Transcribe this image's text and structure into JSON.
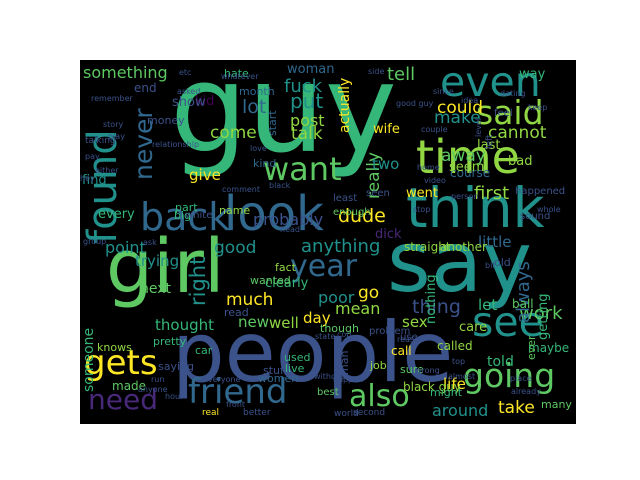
{
  "palette": {
    "background": "#000000",
    "colors": [
      "#440154",
      "#3b528b",
      "#21918c",
      "#5ec962",
      "#fde725",
      "#31688e",
      "#35b779",
      "#90d743",
      "#482878"
    ]
  },
  "words": [
    {
      "text": "guy",
      "color": "#35b779"
    },
    {
      "text": "people",
      "color": "#3b528b"
    },
    {
      "text": "say",
      "color": "#21918c"
    },
    {
      "text": "girl",
      "color": "#5ec962"
    },
    {
      "text": "think",
      "color": "#21918c"
    },
    {
      "text": "look",
      "color": "#31688e"
    },
    {
      "text": "time",
      "color": "#90d743"
    },
    {
      "text": "found",
      "color": "#21918c"
    },
    {
      "text": "even",
      "color": "#21918c"
    },
    {
      "text": "back",
      "color": "#31688e"
    },
    {
      "text": "going",
      "color": "#5ec962"
    },
    {
      "text": "see",
      "color": "#21918c"
    },
    {
      "text": "said",
      "color": "#90d743"
    },
    {
      "text": "friend",
      "color": "#31688e"
    },
    {
      "text": "want",
      "color": "#5ec962"
    },
    {
      "text": "gets",
      "color": "#fde725"
    },
    {
      "text": "year",
      "color": "#31688e"
    },
    {
      "text": "also",
      "color": "#5ec962"
    },
    {
      "text": "need",
      "color": "#482878"
    },
    {
      "text": "never",
      "color": "#31688e"
    },
    {
      "text": "right",
      "color": "#21918c"
    },
    {
      "text": "come",
      "color": "#90d743"
    },
    {
      "text": "lot",
      "color": "#31688e"
    },
    {
      "text": "put",
      "color": "#21918c"
    },
    {
      "text": "fuck",
      "color": "#21918c"
    },
    {
      "text": "talk",
      "color": "#90d743"
    },
    {
      "text": "probably",
      "color": "#3b528b"
    },
    {
      "text": "dude",
      "color": "#fde725"
    },
    {
      "text": "much",
      "color": "#fde725"
    },
    {
      "text": "thing",
      "color": "#3b528b"
    },
    {
      "text": "work",
      "color": "#5ec962"
    },
    {
      "text": "good",
      "color": "#21918c"
    },
    {
      "text": "anything",
      "color": "#21918c"
    },
    {
      "text": "always",
      "color": "#31688e"
    },
    {
      "text": "first",
      "color": "#90d743"
    },
    {
      "text": "make",
      "color": "#21918c"
    },
    {
      "text": "could",
      "color": "#fde725"
    },
    {
      "text": "really",
      "color": "#5ec962"
    },
    {
      "text": "two",
      "color": "#21918c"
    },
    {
      "text": "away",
      "color": "#5ec962"
    },
    {
      "text": "cannot",
      "color": "#90d743"
    },
    {
      "text": "something",
      "color": "#5ec962"
    },
    {
      "text": "woman",
      "color": "#31688e"
    },
    {
      "text": "tell",
      "color": "#5ec962"
    },
    {
      "text": "post",
      "color": "#90d743"
    },
    {
      "text": "actually",
      "color": "#fde725"
    },
    {
      "text": "trying",
      "color": "#21918c"
    },
    {
      "text": "point",
      "color": "#21918c"
    },
    {
      "text": "poor",
      "color": "#21918c"
    },
    {
      "text": "go",
      "color": "#fde725"
    },
    {
      "text": "mean",
      "color": "#90d743"
    },
    {
      "text": "new",
      "color": "#5ec962"
    },
    {
      "text": "well",
      "color": "#90d743"
    },
    {
      "text": "day",
      "color": "#fde725"
    },
    {
      "text": "thought",
      "color": "#35b779"
    },
    {
      "text": "next",
      "color": "#5ec962"
    },
    {
      "text": "someone",
      "color": "#35b779"
    },
    {
      "text": "around",
      "color": "#21918c"
    },
    {
      "text": "take",
      "color": "#fde725"
    },
    {
      "text": "little",
      "color": "#31688e"
    },
    {
      "text": "let",
      "color": "#35b779"
    },
    {
      "text": "sex",
      "color": "#90d743"
    },
    {
      "text": "told",
      "color": "#35b779"
    },
    {
      "text": "life",
      "color": "#fde725"
    },
    {
      "text": "made",
      "color": "#5ec962"
    },
    {
      "text": "give",
      "color": "#fde725"
    },
    {
      "text": "kid",
      "color": "#440154"
    },
    {
      "text": "show",
      "color": "#3b528b"
    },
    {
      "text": "every",
      "color": "#35b779"
    },
    {
      "text": "part",
      "color": "#35b779"
    },
    {
      "text": "find",
      "color": "#21918c"
    },
    {
      "text": "knows",
      "color": "#90d743"
    },
    {
      "text": "pretty",
      "color": "#35b779"
    },
    {
      "text": "black guy",
      "color": "#90d743"
    },
    {
      "text": "dick",
      "color": "#482878"
    },
    {
      "text": "clearly",
      "color": "#35b779"
    },
    {
      "text": "fact",
      "color": "#90d743"
    },
    {
      "text": "call",
      "color": "#fde725"
    },
    {
      "text": "job",
      "color": "#90d743"
    },
    {
      "text": "sure",
      "color": "#5ec962"
    },
    {
      "text": "went",
      "color": "#fde725"
    },
    {
      "text": "course",
      "color": "#31688e"
    },
    {
      "text": "seem",
      "color": "#90d743"
    },
    {
      "text": "nothing",
      "color": "#35b779"
    },
    {
      "text": "straight",
      "color": "#90d743"
    },
    {
      "text": "another",
      "color": "#90d743"
    },
    {
      "text": "getting",
      "color": "#35b779"
    },
    {
      "text": "ball",
      "color": "#5ec962"
    },
    {
      "text": "maybe",
      "color": "#35b779"
    },
    {
      "text": "many",
      "color": "#5ec962"
    },
    {
      "text": "care",
      "color": "#90d743"
    },
    {
      "text": "called",
      "color": "#90d743"
    },
    {
      "text": "wife",
      "color": "#fde725"
    },
    {
      "text": "bad",
      "color": "#90d743"
    },
    {
      "text": "month",
      "color": "#31688e"
    },
    {
      "text": "end",
      "color": "#3b528b"
    },
    {
      "text": "money",
      "color": "#3b528b"
    },
    {
      "text": "last",
      "color": "#90d743"
    },
    {
      "text": "way",
      "color": "#35b779"
    },
    {
      "text": "hate",
      "color": "#35b779"
    },
    {
      "text": "start",
      "color": "#31688e"
    },
    {
      "text": "kind",
      "color": "#31688e"
    },
    {
      "text": "wanted",
      "color": "#5ec962"
    },
    {
      "text": "name",
      "color": "#90d743"
    },
    {
      "text": "big",
      "color": "#35b779"
    },
    {
      "text": "car",
      "color": "#35b779"
    },
    {
      "text": "read",
      "color": "#3b528b"
    },
    {
      "text": "women",
      "color": "#31688e"
    },
    {
      "text": "saying",
      "color": "#3b528b"
    },
    {
      "text": "stuff",
      "color": "#3b528b"
    },
    {
      "text": "live",
      "color": "#35b779"
    },
    {
      "text": "used",
      "color": "#35b779"
    },
    {
      "text": "man",
      "color": "#3b528b"
    },
    {
      "text": "though",
      "color": "#5ec962"
    },
    {
      "text": "enough",
      "color": "#5ec962"
    },
    {
      "text": "least",
      "color": "#3b528b"
    },
    {
      "text": "seen",
      "color": "#3b528b"
    },
    {
      "text": "ever",
      "color": "#5ec962"
    },
    {
      "text": "best",
      "color": "#5ec962"
    },
    {
      "text": "might",
      "color": "#35b779"
    },
    {
      "text": "use",
      "color": "#3b528b"
    },
    {
      "text": "old",
      "color": "#3b528b"
    },
    {
      "text": "sound",
      "color": "#3b528b"
    },
    {
      "text": "white",
      "color": "#3b528b"
    },
    {
      "text": "happened",
      "color": "#3b528b"
    },
    {
      "text": "feel",
      "color": "#3b528b"
    },
    {
      "text": "problem",
      "color": "#3b528b"
    },
    {
      "text": "real",
      "color": "#fde725"
    },
    {
      "text": "better",
      "color": "#3b528b"
    },
    {
      "text": "world",
      "color": "#3b528b"
    },
    {
      "text": "second",
      "color": "#3b528b"
    },
    {
      "text": "happen",
      "color": "#3b528b"
    },
    {
      "text": "without",
      "color": "#3b528b"
    },
    {
      "text": "bit",
      "color": "#3b528b"
    },
    {
      "text": "left",
      "color": "#3b528b"
    },
    {
      "text": "asked",
      "color": "#3b528b"
    },
    {
      "text": "play",
      "color": "#3b528b"
    },
    {
      "text": "pay",
      "color": "#3b528b"
    },
    {
      "text": "talking",
      "color": "#3b528b"
    },
    {
      "text": "remember",
      "color": "#3b528b"
    },
    {
      "text": "whole",
      "color": "#3b528b"
    },
    {
      "text": "since",
      "color": "#3b528b"
    },
    {
      "text": "side",
      "color": "#3b528b"
    },
    {
      "text": "reason",
      "color": "#3b528b"
    },
    {
      "text": "stop",
      "color": "#3b528b"
    },
    {
      "text": "person",
      "color": "#3b528b"
    },
    {
      "text": "group",
      "color": "#3b528b"
    },
    {
      "text": "etc",
      "color": "#3b528b"
    },
    {
      "text": "idea",
      "color": "#3b528b"
    },
    {
      "text": "dating",
      "color": "#3b528b"
    },
    {
      "text": "couple",
      "color": "#3b528b"
    },
    {
      "text": "video",
      "color": "#3b528b"
    },
    {
      "text": "hour",
      "color": "#3b528b"
    },
    {
      "text": "run",
      "color": "#3b528b"
    },
    {
      "text": "front",
      "color": "#3b528b"
    },
    {
      "text": "wrong",
      "color": "#3b528b"
    },
    {
      "text": "top",
      "color": "#3b528b"
    },
    {
      "text": "almost",
      "color": "#3b528b"
    },
    {
      "text": "already",
      "color": "#3b528b"
    },
    {
      "text": "place",
      "color": "#3b528b"
    },
    {
      "text": "cop",
      "color": "#3b528b"
    },
    {
      "text": "state",
      "color": "#3b528b"
    },
    {
      "text": "home",
      "color": "#3b528b"
    },
    {
      "text": "black",
      "color": "#3b528b"
    },
    {
      "text": "ask",
      "color": "#3b528b"
    },
    {
      "text": "relationship",
      "color": "#3b528b"
    },
    {
      "text": "whatever",
      "color": "#3b528b"
    },
    {
      "text": "comment",
      "color": "#3b528b"
    },
    {
      "text": "love",
      "color": "#3b528b"
    },
    {
      "text": "story",
      "color": "#3b528b"
    },
    {
      "text": "anyone",
      "color": "#3b528b"
    },
    {
      "text": "everyone",
      "color": "#3b528b"
    },
    {
      "text": "head",
      "color": "#3b528b"
    },
    {
      "text": "either",
      "color": "#3b528b"
    },
    {
      "text": "hey",
      "color": "#3b528b"
    },
    {
      "text": "good guy",
      "color": "#3b528b"
    },
    {
      "text": "level",
      "color": "#3b528b"
    },
    {
      "text": "keep",
      "color": "#3b528b"
    }
  ]
}
